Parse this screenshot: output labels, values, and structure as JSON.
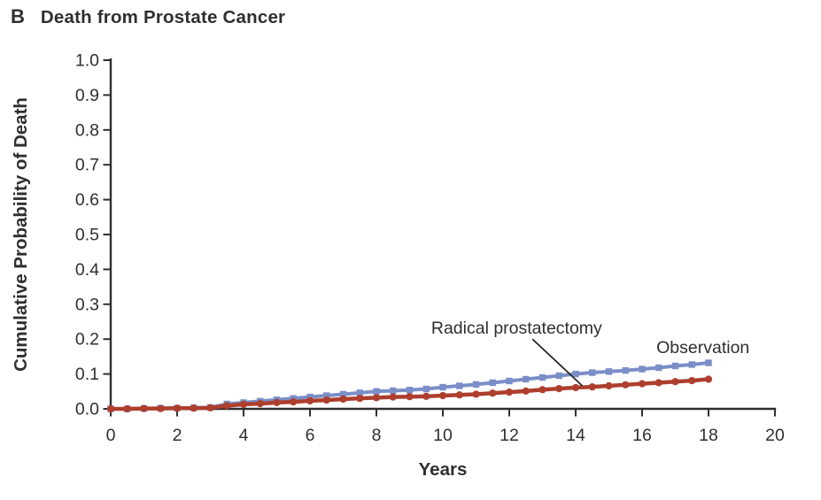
{
  "figure": {
    "panel_label": "B",
    "title": "Death from Prostate Cancer"
  },
  "chart_data": {
    "type": "line",
    "title": "Death from Prostate Cancer",
    "xlabel": "Years",
    "ylabel": "Cumulative Probability of Death",
    "xlim": [
      0,
      20
    ],
    "ylim": [
      0.0,
      1.0
    ],
    "x_ticks": [
      0,
      2,
      4,
      6,
      8,
      10,
      12,
      14,
      16,
      18,
      20
    ],
    "y_ticks": [
      0.0,
      0.1,
      0.2,
      0.3,
      0.4,
      0.5,
      0.6,
      0.7,
      0.8,
      0.9,
      1.0
    ],
    "grid": false,
    "legend_position": "inline-annotations",
    "colors": {
      "axis": "#2f2f31",
      "text": "#2f2f31",
      "annotation_line": "#1f1f1f"
    },
    "x": [
      0,
      0.5,
      1,
      1.5,
      2,
      2.5,
      3,
      3.5,
      4,
      4.5,
      5,
      5.5,
      6,
      6.5,
      7,
      7.5,
      8,
      8.5,
      9,
      9.5,
      10,
      10.5,
      11,
      11.5,
      12,
      12.5,
      13,
      13.5,
      14,
      14.5,
      15,
      15.5,
      16,
      16.5,
      17,
      17.5,
      18
    ],
    "series": [
      {
        "name": "Observation",
        "color": "#7b8ec8",
        "marker": "square",
        "values": [
          0.0,
          0.0,
          0.001,
          0.002,
          0.002,
          0.003,
          0.004,
          0.014,
          0.018,
          0.022,
          0.026,
          0.03,
          0.034,
          0.038,
          0.042,
          0.046,
          0.05,
          0.052,
          0.054,
          0.057,
          0.062,
          0.066,
          0.07,
          0.075,
          0.08,
          0.085,
          0.09,
          0.095,
          0.1,
          0.104,
          0.107,
          0.11,
          0.114,
          0.118,
          0.123,
          0.127,
          0.132
        ]
      },
      {
        "name": "Radical prostatectomy",
        "color": "#ae3e2d",
        "marker": "circle",
        "values": [
          0.0,
          0.0,
          0.001,
          0.001,
          0.002,
          0.002,
          0.003,
          0.009,
          0.013,
          0.015,
          0.018,
          0.02,
          0.023,
          0.025,
          0.028,
          0.03,
          0.032,
          0.034,
          0.035,
          0.036,
          0.038,
          0.04,
          0.042,
          0.045,
          0.048,
          0.051,
          0.055,
          0.058,
          0.061,
          0.063,
          0.066,
          0.069,
          0.072,
          0.075,
          0.078,
          0.081,
          0.085
        ]
      }
    ],
    "annotations": [
      {
        "text": "Radical prostatectomy",
        "series": "Radical prostatectomy",
        "text_x": 9.65,
        "text_y": 0.216,
        "pointer": {
          "x1": 12.7,
          "y1": 0.2,
          "x2": 14.2,
          "y2": 0.066
        }
      },
      {
        "text": "Observation",
        "series": "Observation",
        "text_x": 16.43,
        "text_y": 0.16,
        "pointer": null
      }
    ]
  }
}
